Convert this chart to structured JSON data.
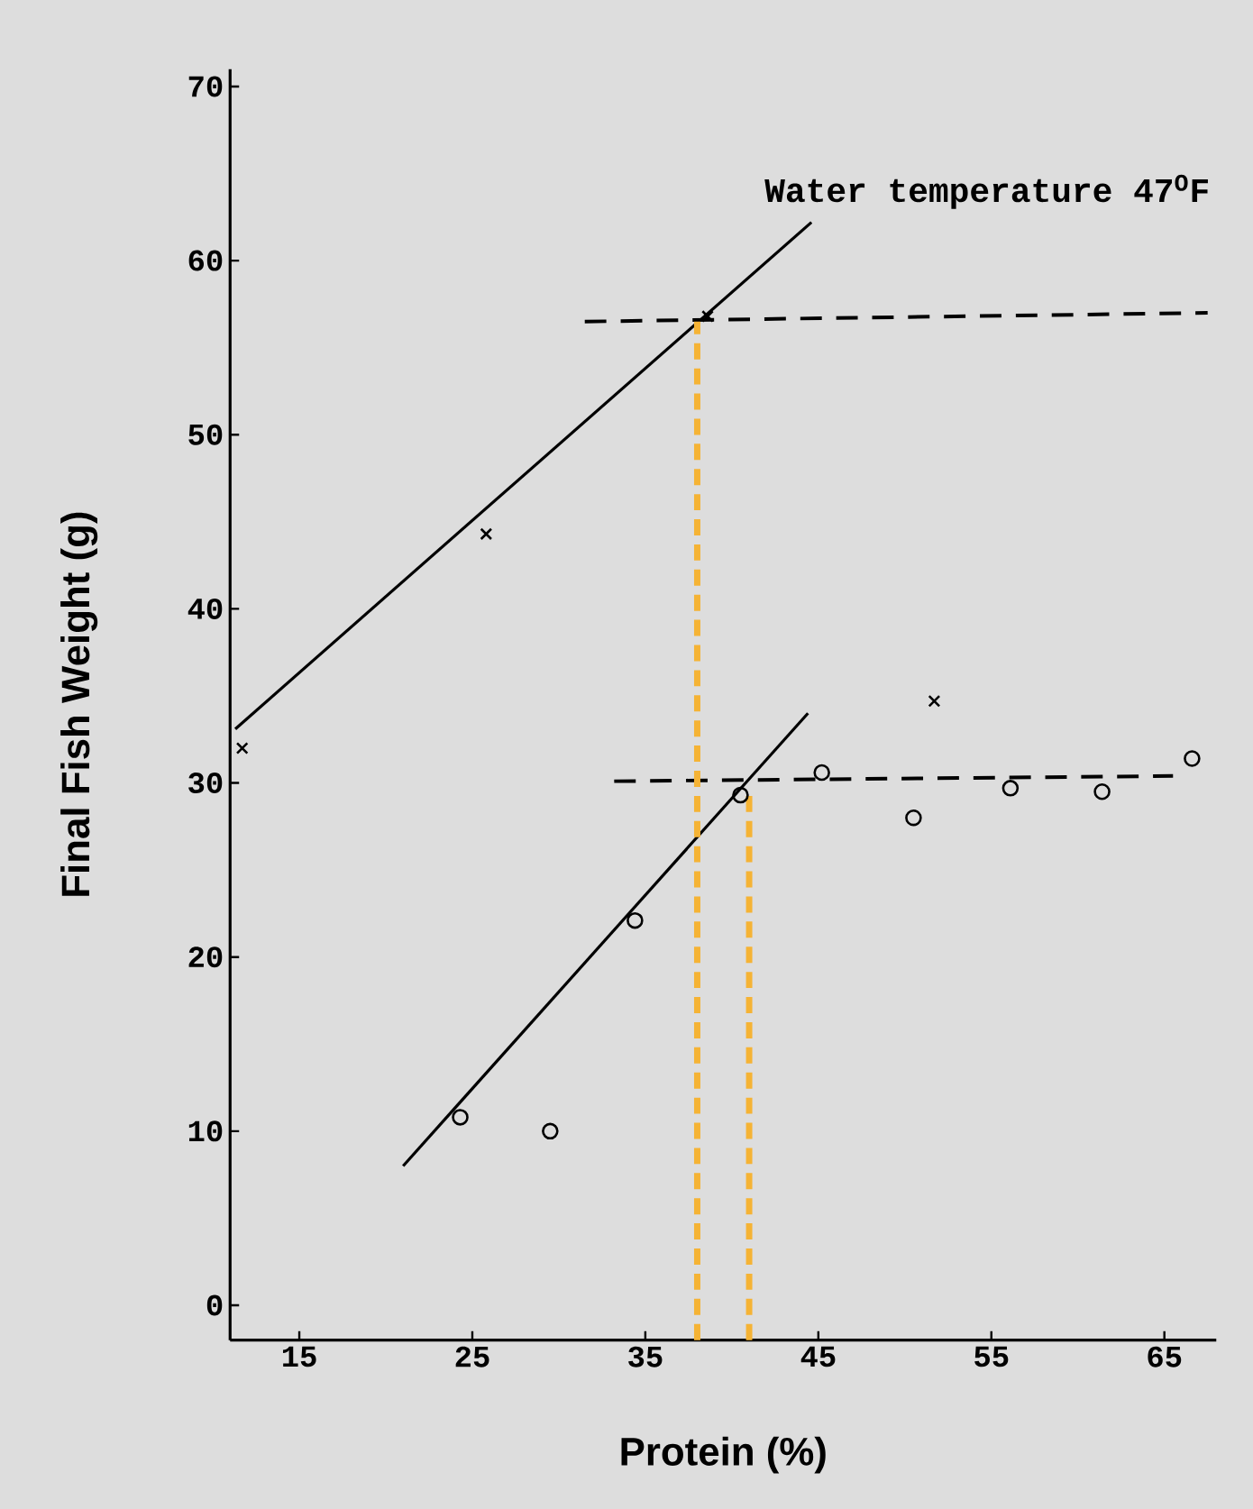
{
  "chart_data": {
    "type": "scatter",
    "xlabel": "Protein (%)",
    "ylabel": "Final Fish Weight (g)",
    "annotations": [
      "Water temperature 47$^{O}$F"
    ],
    "xlim": [
      11,
      68
    ],
    "xticks": [
      15,
      25,
      35,
      45,
      55,
      65
    ],
    "ylim": [
      -2,
      71
    ],
    "yticks": [
      0,
      10,
      20,
      30,
      40,
      50,
      60,
      70
    ],
    "series": [
      {
        "marker": "cross",
        "color": "#000000",
        "x": [
          11.7,
          25.8,
          38.6,
          51.7
        ],
        "values": [
          32.0,
          44.3,
          56.8,
          34.7
        ]
      },
      {
        "marker": "circle",
        "color": "#000000",
        "x": [
          24.3,
          29.5,
          34.4,
          40.5,
          45.2,
          50.5,
          56.1,
          61.4,
          66.6
        ],
        "values": [
          10.8,
          10.0,
          22.1,
          29.3,
          30.6,
          28.0,
          29.7,
          29.5,
          31.4
        ]
      },
      {
        "type": "line",
        "line_style": "solid",
        "color": "#000000",
        "x": [
          11.3,
          44.6
        ],
        "values": [
          33.1,
          62.2
        ]
      },
      {
        "type": "line",
        "line_style": "solid",
        "color": "#000000",
        "x": [
          21.0,
          44.4
        ],
        "values": [
          8.0,
          34.0
        ]
      },
      {
        "type": "line",
        "line_style": "dashed",
        "color": "#000000",
        "x": [
          31.5,
          67.5
        ],
        "values": [
          56.5,
          57.0
        ]
      },
      {
        "type": "line",
        "line_style": "dashed",
        "color": "#000000",
        "x": [
          33.2,
          65.5
        ],
        "values": [
          30.1,
          30.4
        ]
      },
      {
        "type": "line",
        "line_style": "dashed",
        "color": "#f5b335",
        "x": [
          38.0,
          38.0
        ],
        "values": [
          -2,
          56.5
        ]
      },
      {
        "type": "line",
        "line_style": "dashed",
        "color": "#f5b335",
        "x": [
          41.0,
          41.0
        ],
        "values": [
          -2,
          29.5
        ]
      }
    ]
  }
}
